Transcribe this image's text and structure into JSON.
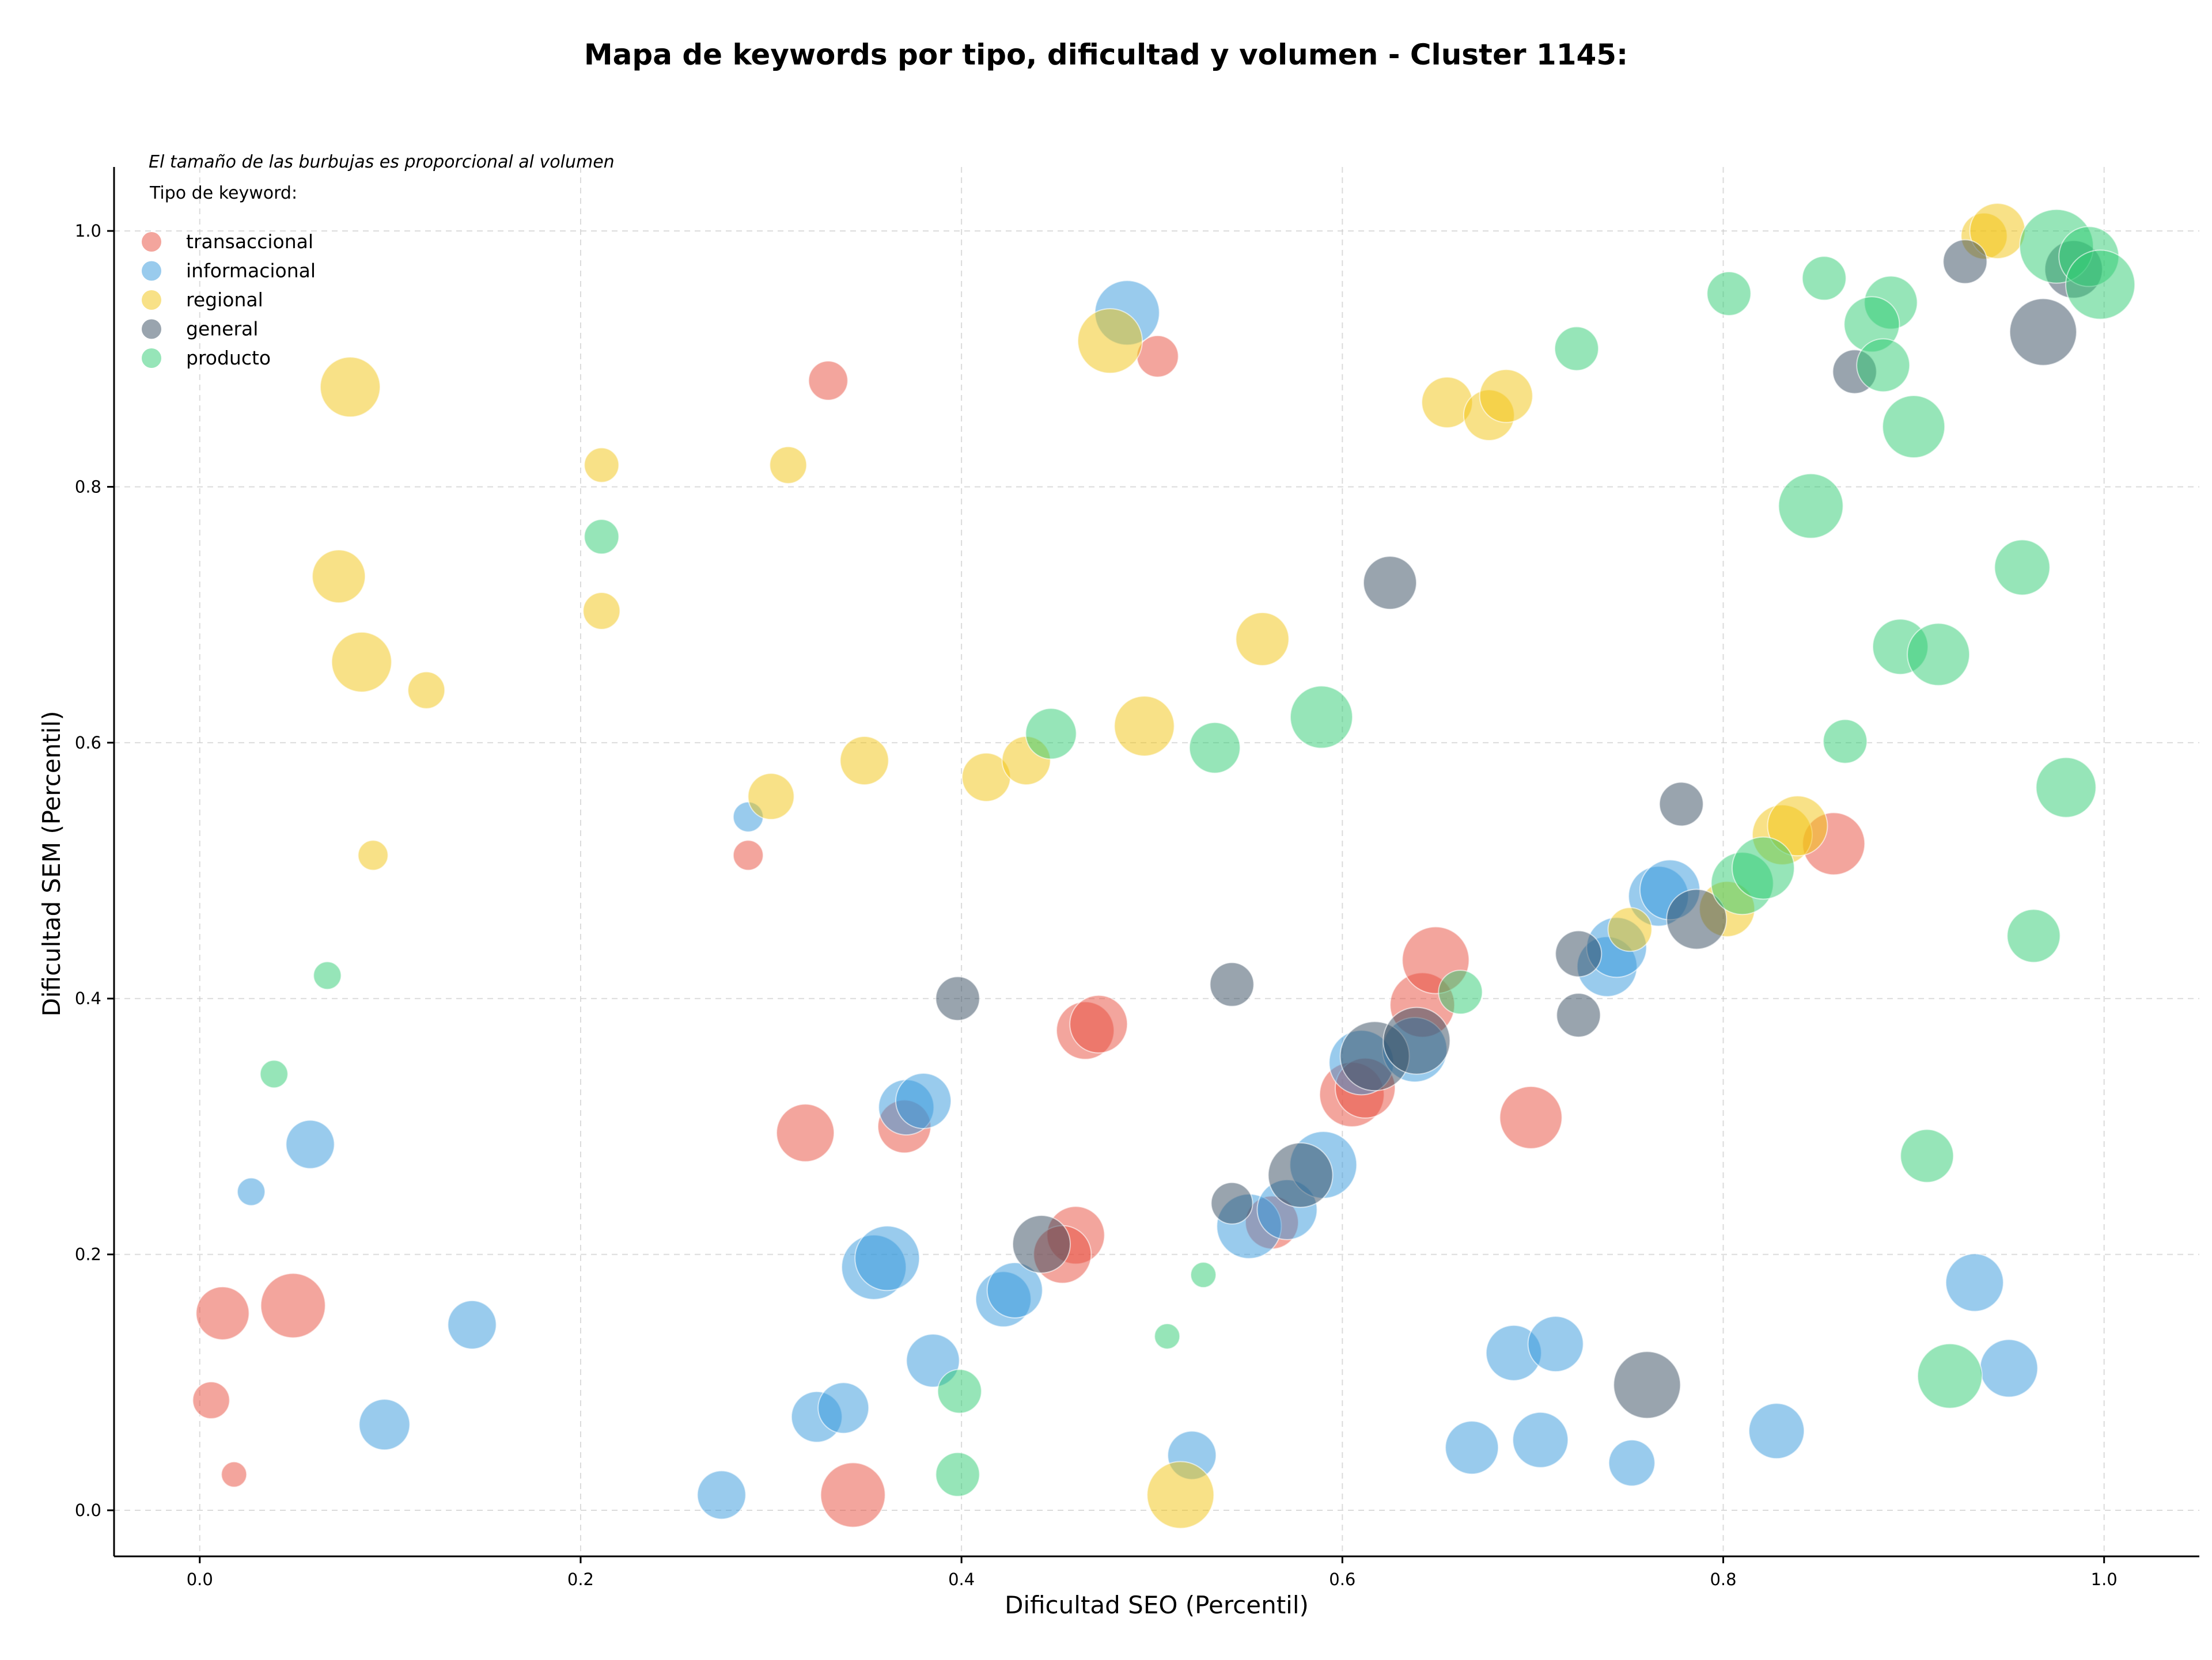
{
  "chart_data": {
    "type": "scatter",
    "title": "Mapa de keywords por tipo, dificultad y volumen - Cluster 1145:",
    "xlabel": "Dificultad SEO (Percentil)",
    "ylabel": "Dificultad SEM (Percentil)",
    "xlim": [
      -0.045,
      1.05
    ],
    "ylim": [
      -0.036,
      1.05
    ],
    "xticks": [
      "0.0",
      "0.2",
      "0.4",
      "0.6",
      "0.8",
      "1.0"
    ],
    "yticks": [
      "0.0",
      "0.2",
      "0.4",
      "0.6",
      "0.8",
      "1.0"
    ],
    "grid": true,
    "annotation": "El tamaño de las burbujas es proporcional al volumen",
    "legend": {
      "title": "Tipo de keyword:",
      "position": "top-left"
    },
    "series": [
      {
        "name": "transaccional",
        "color": "#e74c3c",
        "points": [
          {
            "x": 0.33,
            "y": 0.883,
            "r": 34
          },
          {
            "x": 0.503,
            "y": 0.902,
            "r": 36
          },
          {
            "x": 0.288,
            "y": 0.512,
            "r": 26
          },
          {
            "x": 0.012,
            "y": 0.154,
            "r": 46
          },
          {
            "x": 0.049,
            "y": 0.16,
            "r": 56
          },
          {
            "x": 0.006,
            "y": 0.086,
            "r": 32
          },
          {
            "x": 0.018,
            "y": 0.028,
            "r": 22
          },
          {
            "x": 0.318,
            "y": 0.295,
            "r": 50
          },
          {
            "x": 0.37,
            "y": 0.3,
            "r": 46
          },
          {
            "x": 0.343,
            "y": 0.012,
            "r": 56
          },
          {
            "x": 0.465,
            "y": 0.375,
            "r": 50
          },
          {
            "x": 0.472,
            "y": 0.38,
            "r": 50
          },
          {
            "x": 0.46,
            "y": 0.215,
            "r": 50
          },
          {
            "x": 0.453,
            "y": 0.2,
            "r": 50
          },
          {
            "x": 0.563,
            "y": 0.225,
            "r": 46
          },
          {
            "x": 0.605,
            "y": 0.325,
            "r": 56
          },
          {
            "x": 0.612,
            "y": 0.33,
            "r": 52
          },
          {
            "x": 0.642,
            "y": 0.395,
            "r": 56
          },
          {
            "x": 0.649,
            "y": 0.43,
            "r": 58
          },
          {
            "x": 0.699,
            "y": 0.307,
            "r": 54
          },
          {
            "x": 0.858,
            "y": 0.521,
            "r": 54
          }
        ]
      },
      {
        "name": "informacional",
        "color": "#3498db",
        "points": [
          {
            "x": 0.487,
            "y": 0.936,
            "r": 56
          },
          {
            "x": 0.288,
            "y": 0.542,
            "r": 26
          },
          {
            "x": 0.058,
            "y": 0.286,
            "r": 42
          },
          {
            "x": 0.027,
            "y": 0.249,
            "r": 24
          },
          {
            "x": 0.143,
            "y": 0.145,
            "r": 42
          },
          {
            "x": 0.097,
            "y": 0.067,
            "r": 44
          },
          {
            "x": 0.274,
            "y": 0.012,
            "r": 42
          },
          {
            "x": 0.324,
            "y": 0.073,
            "r": 44
          },
          {
            "x": 0.338,
            "y": 0.08,
            "r": 44
          },
          {
            "x": 0.385,
            "y": 0.117,
            "r": 46
          },
          {
            "x": 0.354,
            "y": 0.19,
            "r": 56
          },
          {
            "x": 0.361,
            "y": 0.197,
            "r": 56
          },
          {
            "x": 0.371,
            "y": 0.315,
            "r": 48
          },
          {
            "x": 0.38,
            "y": 0.32,
            "r": 48
          },
          {
            "x": 0.422,
            "y": 0.165,
            "r": 48
          },
          {
            "x": 0.428,
            "y": 0.172,
            "r": 48
          },
          {
            "x": 0.521,
            "y": 0.043,
            "r": 42
          },
          {
            "x": 0.551,
            "y": 0.222,
            "r": 56
          },
          {
            "x": 0.571,
            "y": 0.235,
            "r": 52
          },
          {
            "x": 0.59,
            "y": 0.27,
            "r": 58
          },
          {
            "x": 0.61,
            "y": 0.35,
            "r": 56
          },
          {
            "x": 0.638,
            "y": 0.36,
            "r": 56
          },
          {
            "x": 0.668,
            "y": 0.049,
            "r": 46
          },
          {
            "x": 0.69,
            "y": 0.123,
            "r": 48
          },
          {
            "x": 0.704,
            "y": 0.055,
            "r": 48
          },
          {
            "x": 0.712,
            "y": 0.13,
            "r": 48
          },
          {
            "x": 0.752,
            "y": 0.037,
            "r": 40
          },
          {
            "x": 0.739,
            "y": 0.425,
            "r": 52
          },
          {
            "x": 0.744,
            "y": 0.44,
            "r": 52
          },
          {
            "x": 0.766,
            "y": 0.48,
            "r": 52
          },
          {
            "x": 0.772,
            "y": 0.485,
            "r": 52
          },
          {
            "x": 0.828,
            "y": 0.062,
            "r": 48
          },
          {
            "x": 0.932,
            "y": 0.178,
            "r": 50
          },
          {
            "x": 0.95,
            "y": 0.111,
            "r": 50
          }
        ]
      },
      {
        "name": "regional",
        "color": "#f1c40f",
        "points": [
          {
            "x": 0.079,
            "y": 0.878,
            "r": 52
          },
          {
            "x": 0.211,
            "y": 0.817,
            "r": 30
          },
          {
            "x": 0.309,
            "y": 0.817,
            "r": 32
          },
          {
            "x": 0.073,
            "y": 0.73,
            "r": 46
          },
          {
            "x": 0.085,
            "y": 0.663,
            "r": 52
          },
          {
            "x": 0.211,
            "y": 0.703,
            "r": 32
          },
          {
            "x": 0.119,
            "y": 0.641,
            "r": 32
          },
          {
            "x": 0.091,
            "y": 0.512,
            "r": 26
          },
          {
            "x": 0.3,
            "y": 0.558,
            "r": 40
          },
          {
            "x": 0.349,
            "y": 0.586,
            "r": 42
          },
          {
            "x": 0.413,
            "y": 0.573,
            "r": 42
          },
          {
            "x": 0.434,
            "y": 0.586,
            "r": 42
          },
          {
            "x": 0.478,
            "y": 0.914,
            "r": 56
          },
          {
            "x": 0.496,
            "y": 0.613,
            "r": 52
          },
          {
            "x": 0.558,
            "y": 0.681,
            "r": 46
          },
          {
            "x": 0.515,
            "y": 0.012,
            "r": 58
          },
          {
            "x": 0.655,
            "y": 0.866,
            "r": 44
          },
          {
            "x": 0.677,
            "y": 0.856,
            "r": 44
          },
          {
            "x": 0.686,
            "y": 0.871,
            "r": 46
          },
          {
            "x": 0.751,
            "y": 0.454,
            "r": 38
          },
          {
            "x": 0.802,
            "y": 0.47,
            "r": 48
          },
          {
            "x": 0.831,
            "y": 0.528,
            "r": 52
          },
          {
            "x": 0.839,
            "y": 0.535,
            "r": 52
          },
          {
            "x": 0.937,
            "y": 0.996,
            "r": 40
          },
          {
            "x": 0.944,
            "y": 1.0,
            "r": 48
          }
        ]
      },
      {
        "name": "general",
        "color": "#34495e",
        "points": [
          {
            "x": 0.625,
            "y": 0.725,
            "r": 46
          },
          {
            "x": 0.398,
            "y": 0.4,
            "r": 38
          },
          {
            "x": 0.542,
            "y": 0.411,
            "r": 38
          },
          {
            "x": 0.442,
            "y": 0.208,
            "r": 50
          },
          {
            "x": 0.542,
            "y": 0.24,
            "r": 36
          },
          {
            "x": 0.578,
            "y": 0.262,
            "r": 56
          },
          {
            "x": 0.617,
            "y": 0.355,
            "r": 60
          },
          {
            "x": 0.639,
            "y": 0.367,
            "r": 58
          },
          {
            "x": 0.724,
            "y": 0.435,
            "r": 40
          },
          {
            "x": 0.724,
            "y": 0.387,
            "r": 38
          },
          {
            "x": 0.778,
            "y": 0.552,
            "r": 38
          },
          {
            "x": 0.786,
            "y": 0.462,
            "r": 52
          },
          {
            "x": 0.76,
            "y": 0.098,
            "r": 58
          },
          {
            "x": 0.869,
            "y": 0.89,
            "r": 38
          },
          {
            "x": 0.927,
            "y": 0.976,
            "r": 38
          },
          {
            "x": 0.968,
            "y": 0.921,
            "r": 58
          },
          {
            "x": 0.984,
            "y": 0.97,
            "r": 50
          }
        ]
      },
      {
        "name": "producto",
        "color": "#2ecc71",
        "points": [
          {
            "x": 0.211,
            "y": 0.761,
            "r": 30
          },
          {
            "x": 0.067,
            "y": 0.418,
            "r": 24
          },
          {
            "x": 0.039,
            "y": 0.341,
            "r": 24
          },
          {
            "x": 0.447,
            "y": 0.607,
            "r": 44
          },
          {
            "x": 0.533,
            "y": 0.596,
            "r": 44
          },
          {
            "x": 0.589,
            "y": 0.62,
            "r": 54
          },
          {
            "x": 0.723,
            "y": 0.908,
            "r": 38
          },
          {
            "x": 0.662,
            "y": 0.405,
            "r": 38
          },
          {
            "x": 0.527,
            "y": 0.184,
            "r": 22
          },
          {
            "x": 0.508,
            "y": 0.136,
            "r": 22
          },
          {
            "x": 0.399,
            "y": 0.093,
            "r": 38
          },
          {
            "x": 0.398,
            "y": 0.028,
            "r": 38
          },
          {
            "x": 0.803,
            "y": 0.951,
            "r": 38
          },
          {
            "x": 0.853,
            "y": 0.963,
            "r": 38
          },
          {
            "x": 0.888,
            "y": 0.944,
            "r": 46
          },
          {
            "x": 0.878,
            "y": 0.927,
            "r": 48
          },
          {
            "x": 0.884,
            "y": 0.895,
            "r": 46
          },
          {
            "x": 0.9,
            "y": 0.847,
            "r": 54
          },
          {
            "x": 0.846,
            "y": 0.785,
            "r": 56
          },
          {
            "x": 0.957,
            "y": 0.737,
            "r": 48
          },
          {
            "x": 0.893,
            "y": 0.675,
            "r": 48
          },
          {
            "x": 0.913,
            "y": 0.669,
            "r": 54
          },
          {
            "x": 0.864,
            "y": 0.601,
            "r": 38
          },
          {
            "x": 0.98,
            "y": 0.565,
            "r": 52
          },
          {
            "x": 0.81,
            "y": 0.49,
            "r": 54
          },
          {
            "x": 0.821,
            "y": 0.502,
            "r": 54
          },
          {
            "x": 0.963,
            "y": 0.449,
            "r": 46
          },
          {
            "x": 0.907,
            "y": 0.277,
            "r": 46
          },
          {
            "x": 0.919,
            "y": 0.105,
            "r": 56
          },
          {
            "x": 0.975,
            "y": 0.988,
            "r": 64
          },
          {
            "x": 0.992,
            "y": 0.98,
            "r": 52
          },
          {
            "x": 0.998,
            "y": 0.958,
            "r": 60
          }
        ]
      }
    ]
  }
}
